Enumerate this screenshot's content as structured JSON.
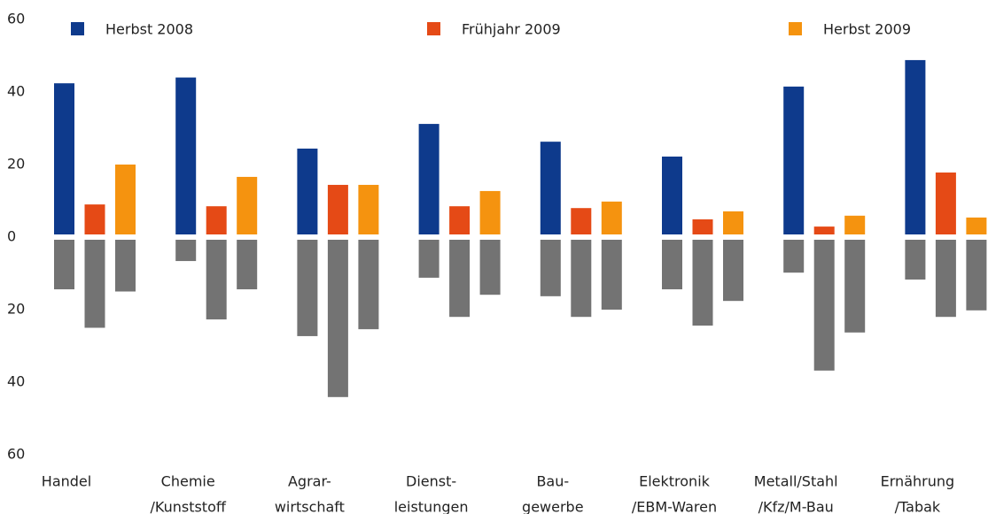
{
  "chart_data": {
    "type": "diverging_bar",
    "categories": [
      [
        "Handel"
      ],
      [
        "Chemie",
        "/Kunststoff"
      ],
      [
        "Agrar-",
        "wirtschaft"
      ],
      [
        "Dienst-",
        "leistungen"
      ],
      [
        "Bau-",
        "gewerbe"
      ],
      [
        "Elektronik",
        "/EBM-Waren"
      ],
      [
        "Metall/Stahl",
        "/Kfz/M-Bau"
      ],
      [
        "Ernährung",
        "/Tabak"
      ]
    ],
    "series": [
      {
        "name": "Herbst 2008",
        "color": "#0e3a8c",
        "values": [
          42.4,
          44,
          24.4,
          31.2,
          26.3,
          22.2,
          41.5,
          48.8
        ],
        "negative_values": [
          -14.4,
          -6.6,
          -27.3,
          -11.2,
          -16.3,
          -14.4,
          -9.8,
          -11.7
        ]
      },
      {
        "name": "Frühjahr 2009",
        "color": "#e54a16",
        "values": [
          9,
          8.5,
          14.4,
          8.5,
          8,
          4.9,
          2.9,
          17.8
        ],
        "negative_values": [
          -25,
          -22.7,
          -44.1,
          -22,
          -22,
          -24.4,
          -36.8,
          -22
        ]
      },
      {
        "name": "Herbst 2009",
        "color": "#f5930f",
        "values": [
          20,
          16.6,
          14.4,
          12.7,
          9.8,
          7.1,
          5.9,
          5.4
        ],
        "negative_values": [
          -15,
          -14.4,
          -25.4,
          -15.9,
          -20,
          -17.6,
          -26.3,
          -20.2
        ]
      }
    ],
    "negative_color": "#737373",
    "ylim": [
      -60,
      60
    ],
    "yticks": [
      60,
      40,
      20,
      0,
      {
        "value": -20,
        "label": "20"
      },
      {
        "value": -40,
        "label": "40"
      },
      {
        "value": -60,
        "label": "60"
      }
    ],
    "grid": false
  }
}
